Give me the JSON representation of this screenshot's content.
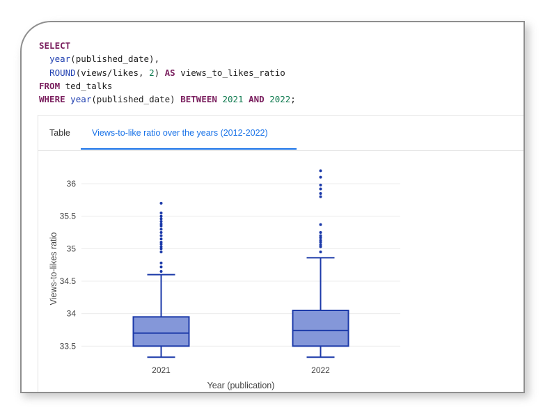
{
  "code": {
    "lines": [
      [
        {
          "t": "SELECT",
          "c": "kw"
        }
      ],
      [
        {
          "t": "  "
        },
        {
          "t": "year",
          "c": "fn"
        },
        {
          "t": "(published_date),"
        }
      ],
      [
        {
          "t": "  "
        },
        {
          "t": "ROUND",
          "c": "fn"
        },
        {
          "t": "(views/likes, "
        },
        {
          "t": "2",
          "c": "num"
        },
        {
          "t": ") "
        },
        {
          "t": "AS",
          "c": "kw"
        },
        {
          "t": " views_to_likes_ratio"
        }
      ],
      [
        {
          "t": "FROM",
          "c": "kw"
        },
        {
          "t": " ted_talks"
        }
      ],
      [
        {
          "t": "WHERE",
          "c": "kw"
        },
        {
          "t": " "
        },
        {
          "t": "year",
          "c": "fn"
        },
        {
          "t": "(published_date) "
        },
        {
          "t": "BETWEEN",
          "c": "kw"
        },
        {
          "t": " "
        },
        {
          "t": "2021",
          "c": "num"
        },
        {
          "t": " "
        },
        {
          "t": "AND",
          "c": "kw"
        },
        {
          "t": " "
        },
        {
          "t": "2022",
          "c": "num"
        },
        {
          "t": ";"
        }
      ]
    ]
  },
  "tabs": {
    "table_label": "Table",
    "chart_label": "Views-to-like ratio over the years (2012-2022)",
    "active": "chart"
  },
  "chart_data": {
    "type": "box",
    "xlabel": "Year (publication)",
    "ylabel": "Views-to-likes ratio",
    "ylim": [
      33.3,
      36.3
    ],
    "yticks": [
      33.5,
      34,
      34.5,
      35,
      35.5,
      36
    ],
    "ytick_labels": [
      "33.5",
      "34",
      "34.5",
      "35",
      "35.5",
      "36"
    ],
    "grid": true,
    "colors": {
      "fill": "#8497d9",
      "stroke": "#1c3aa9"
    },
    "categories": [
      "2021",
      "2022"
    ],
    "boxes": [
      {
        "category": "2021",
        "min": 33.33,
        "q1": 33.5,
        "median": 33.7,
        "q3": 33.95,
        "max": 34.6,
        "outliers": [
          34.65,
          34.72,
          34.78,
          34.95,
          35.0,
          35.03,
          35.07,
          35.1,
          35.15,
          35.2,
          35.25,
          35.3,
          35.35,
          35.38,
          35.42,
          35.46,
          35.5,
          35.55,
          35.7
        ]
      },
      {
        "category": "2022",
        "min": 33.33,
        "q1": 33.5,
        "median": 33.74,
        "q3": 34.05,
        "max": 34.86,
        "outliers": [
          34.95,
          35.03,
          35.06,
          35.1,
          35.13,
          35.17,
          35.2,
          35.25,
          35.37,
          35.8,
          35.85,
          35.92,
          35.98,
          36.1,
          36.2
        ]
      }
    ]
  }
}
